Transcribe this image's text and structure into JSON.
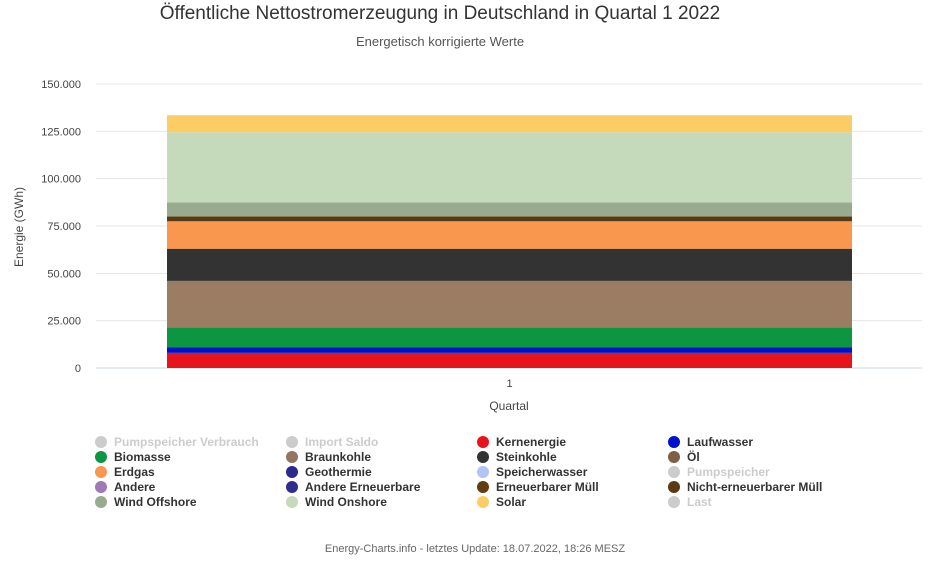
{
  "chart_data": {
    "type": "bar",
    "stacked": true,
    "title": "Öffentliche Nettostromerzeugung in Deutschland in Quartal 1 2022",
    "subtitle": "Energetisch korrigierte Werte",
    "xlabel": "Quartal",
    "ylabel": "Energie (GWh)",
    "categories": [
      "1"
    ],
    "ylim": [
      0,
      150000
    ],
    "yticks": [
      0,
      25000,
      50000,
      75000,
      100000,
      125000,
      150000
    ],
    "ytick_labels": [
      "0",
      "25.000",
      "50.000",
      "75.000",
      "100.000",
      "125.000",
      "150.000"
    ],
    "grid": true,
    "legend_position": "bottom",
    "series": [
      {
        "name": "Kernenergie",
        "color": "#e8141c",
        "values": [
          8000
        ]
      },
      {
        "name": "Laufwasser",
        "color": "#0011cc",
        "values": [
          3000
        ]
      },
      {
        "name": "Biomasse",
        "color": "#0d9641",
        "values": [
          10500
        ]
      },
      {
        "name": "Braunkohle",
        "color": "#9b7d63",
        "values": [
          24500
        ]
      },
      {
        "name": "Steinkohle",
        "color": "#333333",
        "values": [
          17000
        ]
      },
      {
        "name": "Erdgas",
        "color": "#fa974e",
        "values": [
          14500
        ]
      },
      {
        "name": "Nicht-erneuerbarer Müll",
        "color": "#5a3a14",
        "values": [
          2500
        ]
      },
      {
        "name": "Wind Offshore",
        "color": "#98ab8e",
        "values": [
          7500
        ]
      },
      {
        "name": "Wind Onshore",
        "color": "#c5d9bb",
        "values": [
          37000
        ]
      },
      {
        "name": "Solar",
        "color": "#fccd64",
        "values": [
          9000
        ]
      }
    ]
  },
  "legend": {
    "items": [
      {
        "label": "Pumpspeicher Verbrauch",
        "color": "#cccccc",
        "hidden": true
      },
      {
        "label": "Import Saldo",
        "color": "#cccccc",
        "hidden": true
      },
      {
        "label": "Kernenergie",
        "color": "#e8141c",
        "hidden": false
      },
      {
        "label": "Laufwasser",
        "color": "#0011cc",
        "hidden": false
      },
      {
        "label": "Biomasse",
        "color": "#0d9641",
        "hidden": false
      },
      {
        "label": "Braunkohle",
        "color": "#917762",
        "hidden": false
      },
      {
        "label": "Steinkohle",
        "color": "#333333",
        "hidden": false
      },
      {
        "label": "Öl",
        "color": "#7c5f45",
        "hidden": false
      },
      {
        "label": "Erdgas",
        "color": "#fa974e",
        "hidden": false
      },
      {
        "label": "Geothermie",
        "color": "#2b2b8c",
        "hidden": false
      },
      {
        "label": "Speicherwasser",
        "color": "#b0c4f5",
        "hidden": false
      },
      {
        "label": "Pumpspeicher",
        "color": "#cccccc",
        "hidden": true
      },
      {
        "label": "Andere",
        "color": "#9f79b3",
        "hidden": false
      },
      {
        "label": "Andere Erneuerbare",
        "color": "#2e2e8f",
        "hidden": false
      },
      {
        "label": "Erneuerbarer Müll",
        "color": "#613d12",
        "hidden": false
      },
      {
        "label": "Nicht-erneuerbarer Müll",
        "color": "#5a3a14",
        "hidden": false
      },
      {
        "label": "Wind Offshore",
        "color": "#98ab8e",
        "hidden": false
      },
      {
        "label": "Wind Onshore",
        "color": "#c5d9bb",
        "hidden": false
      },
      {
        "label": "Solar",
        "color": "#fccd64",
        "hidden": false
      },
      {
        "label": "Last",
        "color": "#cccccc",
        "hidden": true
      }
    ]
  },
  "credits": "Energy-Charts.info - letztes Update: 18.07.2022, 18:26 MESZ"
}
